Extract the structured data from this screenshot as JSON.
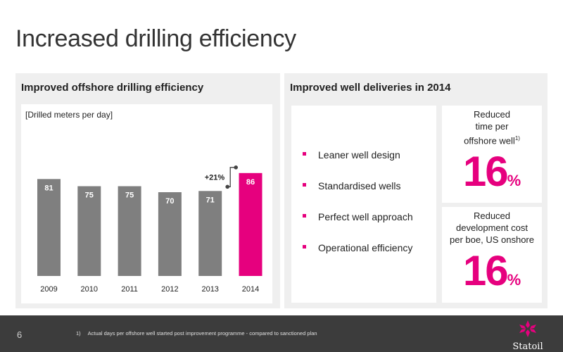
{
  "title": "Increased drilling efficiency",
  "left_panel": {
    "heading": "Improved offshore drilling efficiency",
    "unit_label": "[Drilled meters per day]",
    "growth_label": "+21%"
  },
  "chart_data": {
    "type": "bar",
    "categories": [
      "2009",
      "2010",
      "2011",
      "2012",
      "2013",
      "2014"
    ],
    "values": [
      81,
      75,
      75,
      70,
      71,
      86
    ],
    "ylabel": "[Drilled meters per day]",
    "ylim": [
      0,
      90
    ],
    "grid": false,
    "bar_color": "#7f7f7f",
    "highlight_color": "#e6007e",
    "highlight_index": 5,
    "annotation": "+21%"
  },
  "right_panel": {
    "heading": "Improved well deliveries in 2014",
    "items": [
      "Leaner well design",
      "Standardised wells",
      "Perfect well approach",
      "Operational efficiency"
    ],
    "stat1": {
      "label_lines": [
        "Reduced",
        "time per",
        "offshore well"
      ],
      "footnote_ref": "1)",
      "value": "16",
      "unit": "%"
    },
    "stat2": {
      "label_lines": [
        "Reduced",
        "development cost",
        "per boe, US onshore"
      ],
      "value": "16",
      "unit": "%"
    }
  },
  "footer": {
    "page_number": "6",
    "footnote_number": "1)",
    "footnote_text": "Actual days per offshore well started post improvement programme - compared to sanctioned plan",
    "logo_text": "Statoil"
  },
  "colors": {
    "accent": "#e6007e",
    "bar": "#7f7f7f",
    "footer": "#3c3c3c",
    "panel": "#efefef"
  }
}
